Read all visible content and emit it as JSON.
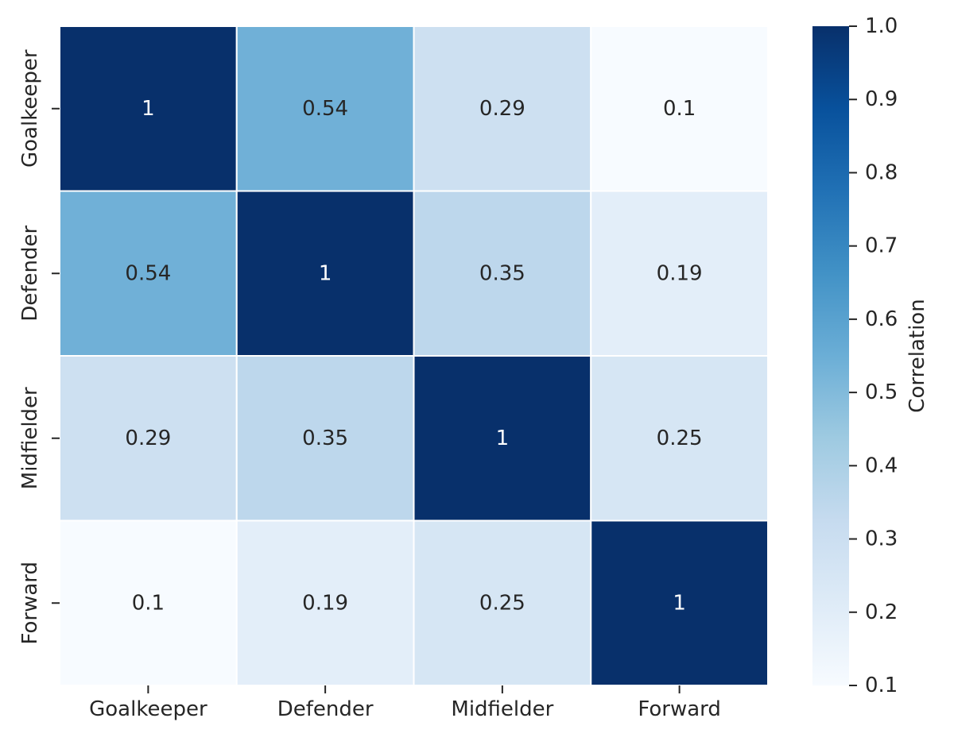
{
  "chart_data": {
    "type": "heatmap",
    "rows": [
      "Goalkeeper",
      "Defender",
      "Midfielder",
      "Forward"
    ],
    "columns": [
      "Goalkeeper",
      "Defender",
      "Midfielder",
      "Forward"
    ],
    "values": [
      [
        1,
        0.54,
        0.29,
        0.1
      ],
      [
        0.54,
        1,
        0.35,
        0.19
      ],
      [
        0.29,
        0.35,
        1,
        0.25
      ],
      [
        0.1,
        0.19,
        0.25,
        1
      ]
    ],
    "cell_labels": [
      [
        "1",
        "0.54",
        "0.29",
        "0.1"
      ],
      [
        "0.54",
        "1",
        "0.35",
        "0.19"
      ],
      [
        "0.29",
        "0.35",
        "1",
        "0.25"
      ],
      [
        "0.1",
        "0.19",
        "0.25",
        "1"
      ]
    ],
    "title": "",
    "xlabel": "",
    "ylabel": "",
    "colorbar": {
      "label": "Correlation",
      "min": 0.1,
      "max": 1.0,
      "ticks": [
        "0.1",
        "0.2",
        "0.3",
        "0.4",
        "0.5",
        "0.6",
        "0.7",
        "0.8",
        "0.9",
        "1.0"
      ],
      "colormap": "Blues"
    },
    "grid": false,
    "legend": "right"
  },
  "colors": {
    "colormap_stops": [
      "#f7fbff",
      "#deebf7",
      "#c6dbef",
      "#9ecae1",
      "#6baed6",
      "#4292c6",
      "#2171b5",
      "#08519c",
      "#08306b"
    ],
    "cell_border": "#ffffff",
    "text_dark": "#262626",
    "text_light": "#ffffff",
    "axis_text": "#262626"
  }
}
